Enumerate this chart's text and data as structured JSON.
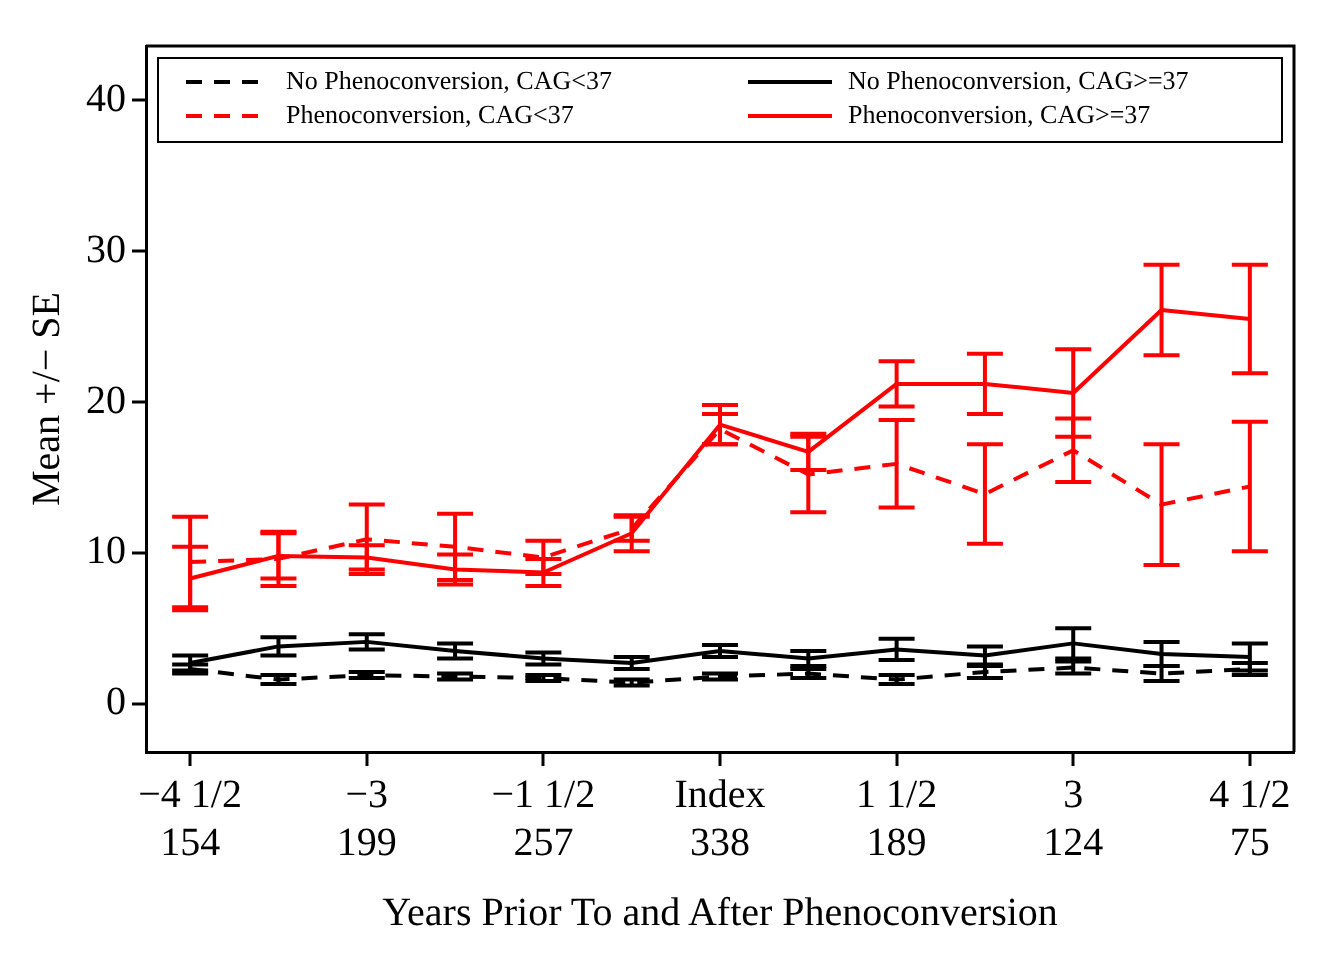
{
  "chart_data": {
    "type": "line",
    "xlabel": "Years Prior To and After Phenoconversion",
    "ylabel": "Mean +/− SE",
    "categories": [
      "−4 1/2\n154",
      null,
      "−3\n199",
      null,
      "−1 1/2\n257",
      null,
      "Index\n338",
      null,
      "1 1/2\n189",
      null,
      "3\n124",
      null,
      "4 1/2\n75"
    ],
    "ylim": [
      -3.2,
      43.6
    ],
    "yticks": [
      0,
      10,
      20,
      30,
      40
    ],
    "grid": false,
    "legend": "top",
    "marker": "none",
    "series": [
      {
        "name": "No Phenoconversion, CAG<37",
        "color": "#000000",
        "line_style": "dashed",
        "values": [
          2.3,
          1.6,
          1.9,
          1.8,
          1.7,
          1.4,
          1.8,
          2.0,
          1.6,
          2.1,
          2.4,
          2.0,
          2.3
        ],
        "errors": [
          0.3,
          0.3,
          0.2,
          0.2,
          0.2,
          0.2,
          0.2,
          0.3,
          0.3,
          0.4,
          0.4,
          0.5,
          0.4
        ]
      },
      {
        "name": "Phenoconversion, CAG<37",
        "color": "#ff0000",
        "line_style": "dashed",
        "values": [
          9.4,
          9.6,
          10.9,
          10.4,
          9.7,
          11.6,
          18.2,
          15.2,
          15.9,
          13.9,
          16.8,
          13.2,
          14.4
        ],
        "errors": [
          3.0,
          1.8,
          2.3,
          2.2,
          1.1,
          0.8,
          1.0,
          2.5,
          2.9,
          3.3,
          2.1,
          4.0,
          4.3
        ]
      },
      {
        "name": "No Phenoconversion, CAG>=37",
        "color": "#000000",
        "line_style": "solid",
        "values": [
          2.7,
          3.8,
          4.1,
          3.5,
          3.0,
          2.7,
          3.5,
          3.0,
          3.6,
          3.2,
          4.0,
          3.3,
          3.1
        ],
        "errors": [
          0.5,
          0.6,
          0.5,
          0.5,
          0.4,
          0.4,
          0.4,
          0.5,
          0.7,
          0.6,
          1.0,
          0.8,
          0.9
        ]
      },
      {
        "name": "Phenoconversion, CAG>=37",
        "color": "#ff0000",
        "line_style": "solid",
        "values": [
          8.3,
          9.8,
          9.7,
          8.9,
          8.7,
          11.3,
          18.5,
          16.7,
          21.2,
          21.2,
          20.6,
          26.1,
          25.5
        ],
        "errors": [
          2.1,
          1.5,
          0.8,
          1.0,
          0.9,
          1.2,
          1.3,
          1.2,
          1.5,
          2.0,
          2.9,
          3.0,
          3.6
        ]
      }
    ]
  }
}
